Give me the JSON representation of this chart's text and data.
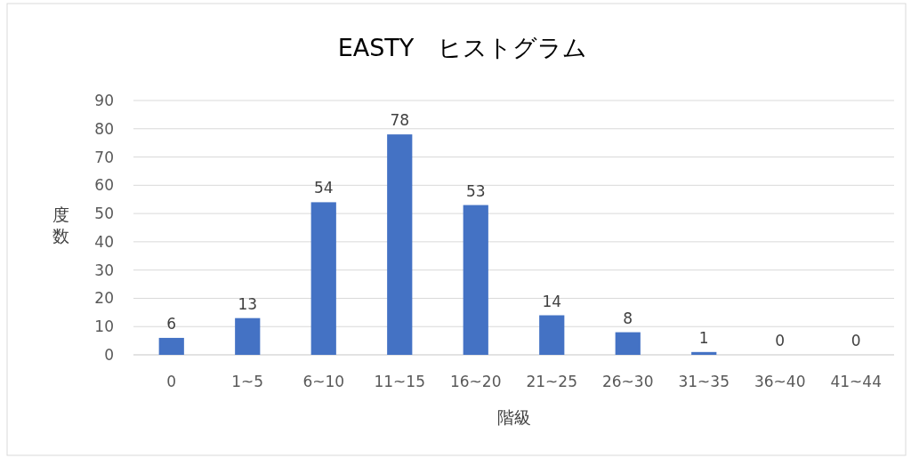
{
  "chart_data": {
    "type": "bar",
    "title": "EASTY　ヒストグラム",
    "xlabel": "階級",
    "ylabel": "度数",
    "categories": [
      "0",
      "1~5",
      "6~10",
      "11~15",
      "16~20",
      "21~25",
      "26~30",
      "31~35",
      "36~40",
      "41~44"
    ],
    "values": [
      6,
      13,
      54,
      78,
      53,
      14,
      8,
      1,
      0,
      0
    ],
    "color": "#4472c4",
    "data_labels": true,
    "grid": "y",
    "ylim": [
      0,
      90
    ],
    "yticks": [
      0,
      10,
      20,
      30,
      40,
      50,
      60,
      70,
      80,
      90
    ]
  }
}
